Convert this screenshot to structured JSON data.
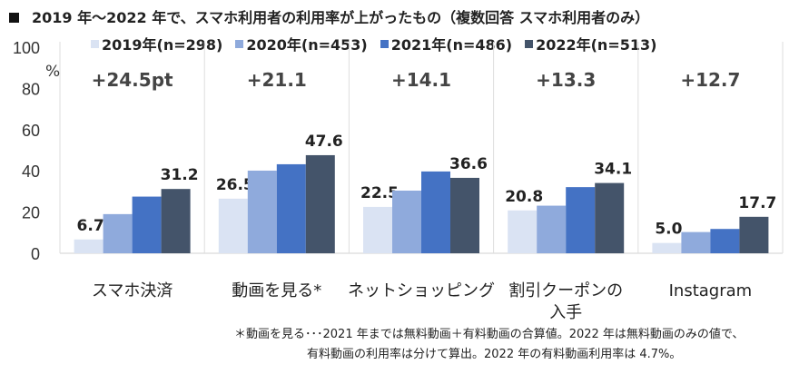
{
  "title": "2019 年～2022 年で、スマホ利用者の利用率が上がったもの（複数回答 スマホ利用者のみ）",
  "footnote": [
    "＊動画を見る･･･2021 年までは無料動画＋有料動画の合算値。2022 年は無料動画のみの値で、",
    "有料動画の利用率は分けて算出。2022 年の有料動画利用率は 4.7%。"
  ],
  "chart_data": {
    "type": "bar",
    "title": "2019 年～2022 年で、スマホ利用者の利用率が上がったもの（複数回答 スマホ利用者のみ）",
    "ylabel": "%",
    "ylim": [
      0,
      100
    ],
    "yticks": [
      "0",
      "20",
      "40",
      "60",
      "80",
      "100"
    ],
    "grid": false,
    "legend": "top",
    "categories": [
      "スマホ決済",
      "動画を見る*",
      "ネットショッピング",
      "割引クーポンの\n入手",
      "Instagram"
    ],
    "series": [
      {
        "name": "2019年(n=298)",
        "color": "#dae3f3",
        "values": [
          6.7,
          26.5,
          22.5,
          20.8,
          5.0
        ],
        "labeled": true
      },
      {
        "name": "2020年(n=453)",
        "color": "#8faadc",
        "values": [
          19.0,
          40.1,
          30.4,
          23.1,
          10.3
        ],
        "labeled": false
      },
      {
        "name": "2021年(n=486)",
        "color": "#4472c4",
        "values": [
          27.5,
          43.2,
          39.7,
          32.1,
          11.8
        ],
        "labeled": false
      },
      {
        "name": "2022年(n=513)",
        "color": "#44546a",
        "values": [
          31.2,
          47.6,
          36.6,
          34.1,
          17.7
        ],
        "labeled": true
      }
    ],
    "annotations": [
      "+24.5pt",
      "+21.1",
      "+14.1",
      "+13.3",
      "+12.7"
    ]
  }
}
